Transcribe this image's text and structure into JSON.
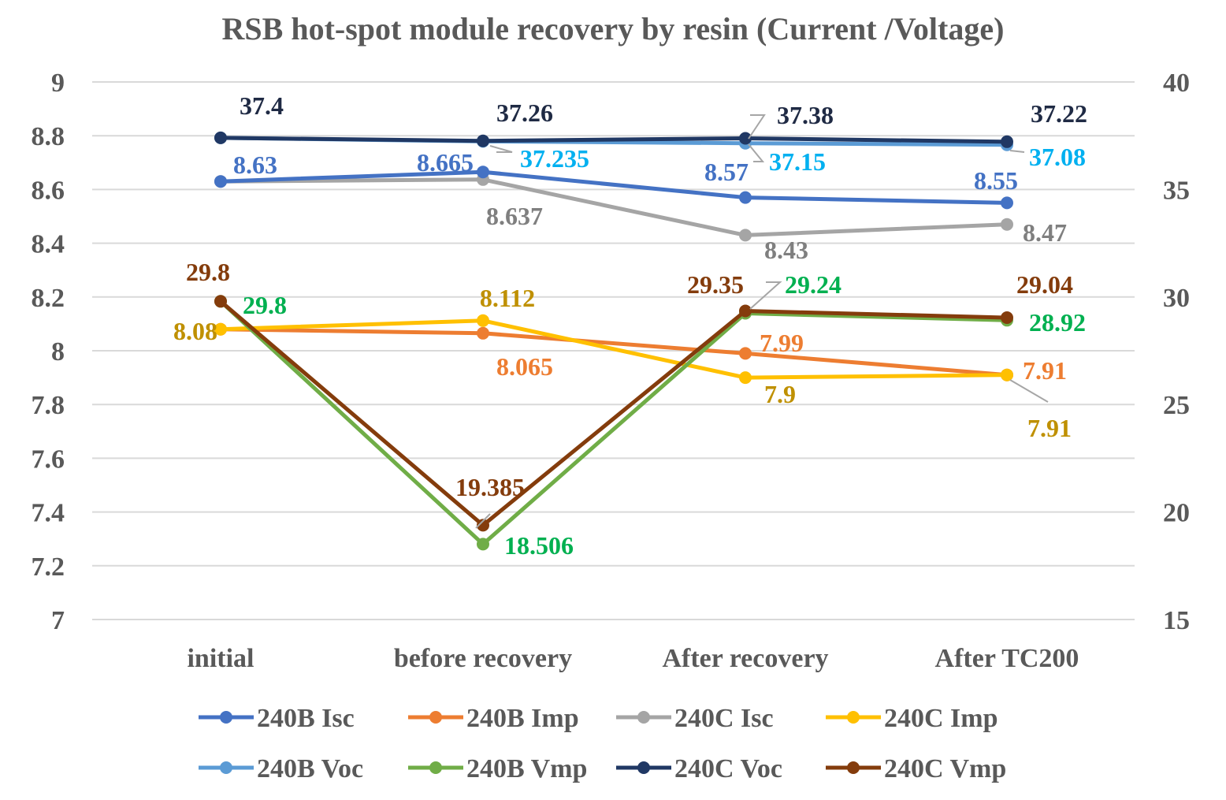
{
  "chart_data": {
    "type": "line",
    "title": "RSB hot-spot module recovery by resin (Current /Voltage)",
    "categories": [
      "initial",
      "before recovery",
      "After recovery",
      "After TC200"
    ],
    "y_left": {
      "min": 7,
      "max": 9,
      "step": 0.2,
      "ticks": [
        "7",
        "7.2",
        "7.4",
        "7.6",
        "7.8",
        "8",
        "8.2",
        "8.4",
        "8.6",
        "8.8",
        "9"
      ]
    },
    "y_right": {
      "min": 15,
      "max": 40,
      "step": 5,
      "ticks": [
        "15",
        "20",
        "25",
        "30",
        "35",
        "40"
      ]
    },
    "grid": true,
    "legend_position": "bottom",
    "series": [
      {
        "name": "240B Isc",
        "axis": "left",
        "color": "#4472C4",
        "values": [
          8.63,
          8.665,
          8.57,
          8.55
        ],
        "labels": [
          "8.63",
          "8.665",
          "8.57",
          "8.55"
        ]
      },
      {
        "name": "240B Imp",
        "axis": "left",
        "color": "#ED7D31",
        "values": [
          8.08,
          8.065,
          7.99,
          7.91
        ],
        "labels": [
          "",
          "8.065",
          "7.99",
          "7.91"
        ]
      },
      {
        "name": "240C Isc",
        "axis": "left",
        "color": "#A5A5A5",
        "values": [
          8.63,
          8.637,
          8.43,
          8.47
        ],
        "labels": [
          "",
          "8.637",
          "8.43",
          "8.47"
        ]
      },
      {
        "name": "240C Imp",
        "axis": "left",
        "color": "#FFC000",
        "values": [
          8.08,
          8.112,
          7.9,
          7.91
        ],
        "labels": [
          "8.08",
          "8.112",
          "7.9",
          "7.91"
        ]
      },
      {
        "name": "240B Voc",
        "axis": "right",
        "color": "#5B9BD5",
        "values": [
          37.4,
          37.235,
          37.15,
          37.08
        ],
        "labels": [
          "",
          "37.235",
          "37.15",
          "37.08"
        ]
      },
      {
        "name": "240B Vmp",
        "axis": "right",
        "color": "#70AD47",
        "values": [
          29.8,
          18.506,
          29.24,
          28.92
        ],
        "labels": [
          "29.8",
          "18.506",
          "29.24",
          "28.92"
        ]
      },
      {
        "name": "240C Voc",
        "axis": "right",
        "color": "#203864",
        "values": [
          37.4,
          37.26,
          37.38,
          37.22
        ],
        "labels": [
          "37.4",
          "37.26",
          "37.38",
          "37.22"
        ]
      },
      {
        "name": "240C Vmp",
        "axis": "right",
        "color": "#843C0C",
        "values": [
          29.8,
          19.385,
          29.35,
          29.04
        ],
        "labels": [
          "29.8",
          "19.385",
          "29.35",
          "29.04"
        ]
      }
    ]
  },
  "colors": {
    "grid": "#D9D9D9",
    "axis_text": "#595959",
    "leader": "#A6A6A6",
    "label_240B_Isc": "#4472C4",
    "label_240B_Imp": "#ED7D31",
    "label_240C_Isc": "#7F7F7F",
    "label_240C_Imp": "#BF9000",
    "label_240B_Voc": "#00B0F0",
    "label_240B_Vmp": "#00B050",
    "label_240C_Voc": "#1F2A44",
    "label_240C_Vmp": "#843C0C"
  }
}
